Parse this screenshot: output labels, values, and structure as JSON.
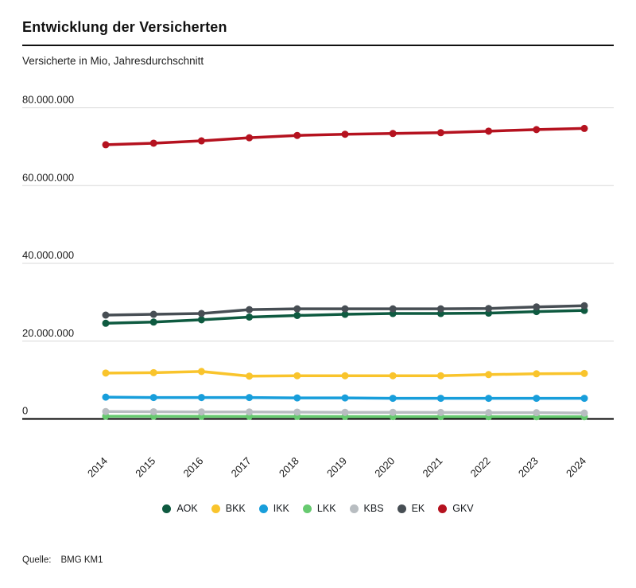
{
  "header": {
    "title": "Entwicklung der Versicherten",
    "subtitle": "Versicherte in Mio, Jahresdurchschnitt"
  },
  "source": {
    "label": "Quelle:",
    "value": "BMG KM1"
  },
  "chart_data": {
    "type": "line",
    "title": "Entwicklung der Versicherten",
    "subtitle": "Versicherte in Mio, Jahresdurchschnitt",
    "x": [
      2014,
      2015,
      2016,
      2017,
      2018,
      2019,
      2020,
      2021,
      2022,
      2023,
      2024
    ],
    "xlabel": "",
    "ylabel": "",
    "ylim": [
      0,
      80000000
    ],
    "grid": true,
    "legend_position": "bottom",
    "marker": "circle",
    "axis_color": "#000000",
    "grid_color": "#d8d8d8",
    "yticks": [
      {
        "value": 0,
        "label": "0"
      },
      {
        "value": 20000000,
        "label": "20.000.000"
      },
      {
        "value": 40000000,
        "label": "40.000.000"
      },
      {
        "value": 60000000,
        "label": "60.000.000"
      },
      {
        "value": 80000000,
        "label": "80.000.000"
      }
    ],
    "series": [
      {
        "name": "AOK",
        "color": "#0e5a40",
        "values": [
          24600000,
          24900000,
          25500000,
          26200000,
          26600000,
          26900000,
          27100000,
          27100000,
          27200000,
          27600000,
          27900000
        ]
      },
      {
        "name": "BKK",
        "color": "#f9c42c",
        "values": [
          11800000,
          11900000,
          12200000,
          11000000,
          11100000,
          11100000,
          11100000,
          11100000,
          11400000,
          11600000,
          11700000
        ]
      },
      {
        "name": "IKK",
        "color": "#189edb",
        "values": [
          5600000,
          5500000,
          5500000,
          5500000,
          5400000,
          5400000,
          5300000,
          5300000,
          5300000,
          5300000,
          5300000
        ]
      },
      {
        "name": "LKK",
        "color": "#67ca70",
        "values": [
          700000,
          680000,
          660000,
          650000,
          630000,
          620000,
          600000,
          590000,
          580000,
          560000,
          550000
        ]
      },
      {
        "name": "KBS",
        "color": "#b8bdc1",
        "values": [
          1900000,
          1850000,
          1800000,
          1800000,
          1750000,
          1700000,
          1700000,
          1650000,
          1600000,
          1600000,
          1500000
        ]
      },
      {
        "name": "EK",
        "color": "#474e54",
        "values": [
          26700000,
          26900000,
          27100000,
          28100000,
          28300000,
          28300000,
          28300000,
          28300000,
          28400000,
          28800000,
          29100000
        ]
      },
      {
        "name": "GKV",
        "color": "#b5121f",
        "values": [
          70500000,
          70900000,
          71500000,
          72300000,
          72900000,
          73200000,
          73400000,
          73600000,
          74000000,
          74400000,
          74700000
        ]
      }
    ]
  }
}
